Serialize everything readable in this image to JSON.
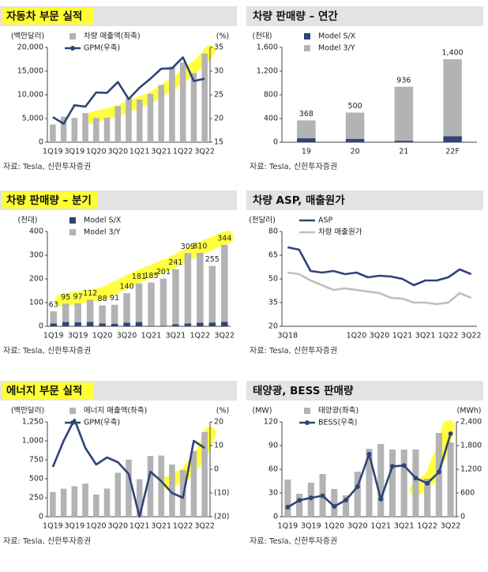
{
  "chart_data": [
    {
      "type": "combo",
      "title": "자동차 부문 실적",
      "y_label": "(백만달러)",
      "y2_label": "(%)",
      "categories": [
        "1Q19",
        null,
        "3Q19",
        null,
        "1Q20",
        null,
        "3Q20",
        null,
        "1Q21",
        null,
        "3Q21",
        null,
        "1Q22",
        null,
        "3Q22"
      ],
      "series": [
        {
          "name": "차량 매출액(좌축)",
          "kind": "bar",
          "color": "#b3b3b3",
          "values": [
            3723,
            5376,
            5132,
            6143,
            5132,
            5179,
            7611,
            9314,
            9002,
            10206,
            12057,
            15967,
            16861,
            14602,
            18692
          ]
        },
        {
          "name": "GPM(우축)",
          "kind": "line",
          "axis": "y2",
          "color": "#2f4478",
          "values": [
            20.3,
            18.9,
            22.8,
            22.5,
            25.5,
            25.4,
            27.7,
            24.1,
            26.5,
            28.4,
            30.5,
            30.6,
            32.9,
            27.9,
            28.4
          ]
        }
      ],
      "ylim": [
        0,
        20000
      ],
      "yticks": [
        0,
        {
          "value": 5000,
          "label": "5,000"
        },
        {
          "value": 10000,
          "label": "10,000"
        },
        {
          "value": 15000,
          "label": "15,000"
        },
        {
          "value": 20000,
          "label": "20,000"
        }
      ],
      "y2lim": [
        15,
        35
      ],
      "y2ticks": [
        15,
        20,
        25,
        30,
        35
      ],
      "source": "자료: Tesla, 신한투자증권"
    },
    {
      "type": "bar",
      "stacked": true,
      "title": "차량 판매량 – 연간",
      "y_label": "(천대)",
      "categories": [
        "19",
        "20",
        "21",
        "22F"
      ],
      "series": [
        {
          "name": "Model S/X",
          "kind": "bar",
          "color": "#2f4478",
          "values": [
            66,
            57,
            25,
            100
          ]
        },
        {
          "name": "Model 3/Y",
          "kind": "bar",
          "color": "#b3b3b3",
          "values": [
            302,
            443,
            911,
            1300
          ]
        }
      ],
      "totals": [
        368,
        500,
        936,
        1400
      ],
      "total_labels": [
        "368",
        "500",
        "936",
        "1,400"
      ],
      "ylim": [
        0,
        1600
      ],
      "yticks": [
        0,
        400,
        800,
        {
          "value": 1200,
          "label": "1,200"
        },
        {
          "value": 1600,
          "label": "1,600"
        }
      ],
      "source": "자료: Tesla, 신한투자증권"
    },
    {
      "type": "bar",
      "stacked": true,
      "title": "차량 판매량 – 분기",
      "y_label": "(천대)",
      "categories": [
        "1Q19",
        null,
        "3Q19",
        null,
        "1Q20",
        null,
        "3Q20",
        null,
        "1Q21",
        null,
        "3Q21",
        null,
        "1Q22",
        null,
        "3Q22"
      ],
      "series": [
        {
          "name": "Model S/X",
          "kind": "bar",
          "color": "#2f4478",
          "values": [
            12,
            18,
            17,
            19,
            12,
            11,
            15,
            18,
            2,
            2,
            9,
            12,
            15,
            16,
            19
          ]
        },
        {
          "name": "Model 3/Y",
          "kind": "bar",
          "color": "#b3b3b3",
          "values": [
            51,
            77,
            80,
            93,
            76,
            80,
            125,
            163,
            183,
            199,
            232,
            297,
            295,
            239,
            325
          ]
        }
      ],
      "totals": [
        63,
        95,
        97,
        112,
        88,
        91,
        140,
        181,
        185,
        201,
        241,
        309,
        310,
        255,
        344
      ],
      "ylim": [
        0,
        400
      ],
      "yticks": [
        0,
        100,
        200,
        300,
        400
      ],
      "source": "자료: Tesla, 신한투자증권"
    },
    {
      "type": "line",
      "title": "차량 ASP, 매출원가",
      "y_label": "(천달러)",
      "categories": [
        "3Q18",
        null,
        null,
        null,
        null,
        null,
        "1Q20",
        null,
        "3Q20",
        null,
        "1Q21",
        null,
        "3Q21",
        null,
        "1Q22",
        null,
        "3Q22"
      ],
      "series": [
        {
          "name": "ASP",
          "kind": "line",
          "color": "#2f4478",
          "values": [
            70,
            68.5,
            55,
            54,
            55,
            53,
            54,
            51,
            52,
            51.5,
            50,
            46,
            49,
            49,
            51,
            56,
            53
          ]
        },
        {
          "name": "차량 매출원가",
          "kind": "line",
          "color": "#bfbfbf",
          "values": [
            54,
            53,
            49,
            46,
            43,
            44,
            43,
            42,
            41,
            38,
            37.5,
            35,
            35,
            34,
            35,
            41,
            38
          ]
        }
      ],
      "ylim": [
        20,
        80
      ],
      "yticks": [
        20,
        35,
        50,
        65,
        80
      ],
      "source": "자료: Tesla, 신한투자증권"
    },
    {
      "type": "combo",
      "title": "에너지 부문 실적",
      "y_label": "(백만달러)",
      "y2_label": "(%)",
      "categories": [
        "1Q19",
        null,
        "3Q19",
        null,
        "1Q20",
        null,
        "3Q20",
        null,
        "1Q21",
        null,
        "3Q21",
        null,
        "1Q22",
        null,
        "3Q22"
      ],
      "series": [
        {
          "name": "에너지 매출액(좌축)",
          "kind": "bar",
          "color": "#b3b3b3",
          "values": [
            325,
            369,
            402,
            436,
            293,
            370,
            579,
            752,
            494,
            801,
            806,
            688,
            616,
            866,
            1117
          ]
        },
        {
          "name": "GPM(우축)",
          "kind": "line",
          "axis": "y2",
          "color": "#2f4478",
          "values": [
            1,
            12,
            21,
            9,
            2,
            5,
            3,
            -2,
            -20,
            -1,
            -5,
            -10,
            -12,
            12,
            9
          ]
        }
      ],
      "ylim": [
        0,
        1250
      ],
      "yticks": [
        0,
        250,
        500,
        750,
        {
          "value": 1000,
          "label": "1,000"
        },
        {
          "value": 1250,
          "label": "1,250"
        }
      ],
      "y2lim": [
        -20,
        20
      ],
      "y2ticks": [
        {
          "value": -20,
          "label": "(20)"
        },
        {
          "value": -10,
          "label": "(10)"
        },
        0,
        10,
        20
      ],
      "source": "자료: Tesla, 신한투자증권"
    },
    {
      "type": "combo",
      "title": "태양광, BESS 판매량",
      "y_label": "(MW)",
      "y2_label": "(MWh)",
      "categories": [
        "1Q19",
        null,
        "3Q19",
        null,
        "1Q20",
        null,
        "3Q20",
        null,
        "1Q21",
        null,
        "3Q21",
        null,
        "1Q22",
        null,
        "3Q22"
      ],
      "series": [
        {
          "name": "태양광(좌축)",
          "kind": "bar",
          "color": "#b3b3b3",
          "values": [
            47,
            29,
            43,
            54,
            35,
            27,
            57,
            86,
            92,
            85,
            85,
            85,
            48,
            106,
            94
          ]
        },
        {
          "name": "BESS(우축)",
          "kind": "line",
          "axis": "y2",
          "color": "#2f4478",
          "markers": true,
          "values": [
            239,
            415,
            477,
            530,
            260,
            419,
            759,
            1584,
            445,
            1274,
            1295,
            978,
            846,
            1133,
            2100
          ]
        }
      ],
      "ylim": [
        0,
        120
      ],
      "yticks": [
        0,
        30,
        60,
        90,
        120
      ],
      "y2lim": [
        0,
        2400
      ],
      "y2ticks": [
        0,
        600,
        {
          "value": 1200,
          "label": "1,200"
        },
        {
          "value": 1800,
          "label": "1,800"
        },
        {
          "value": 2400,
          "label": "2,400"
        }
      ],
      "source": "자료: Tesla, 신한투자증권"
    }
  ]
}
